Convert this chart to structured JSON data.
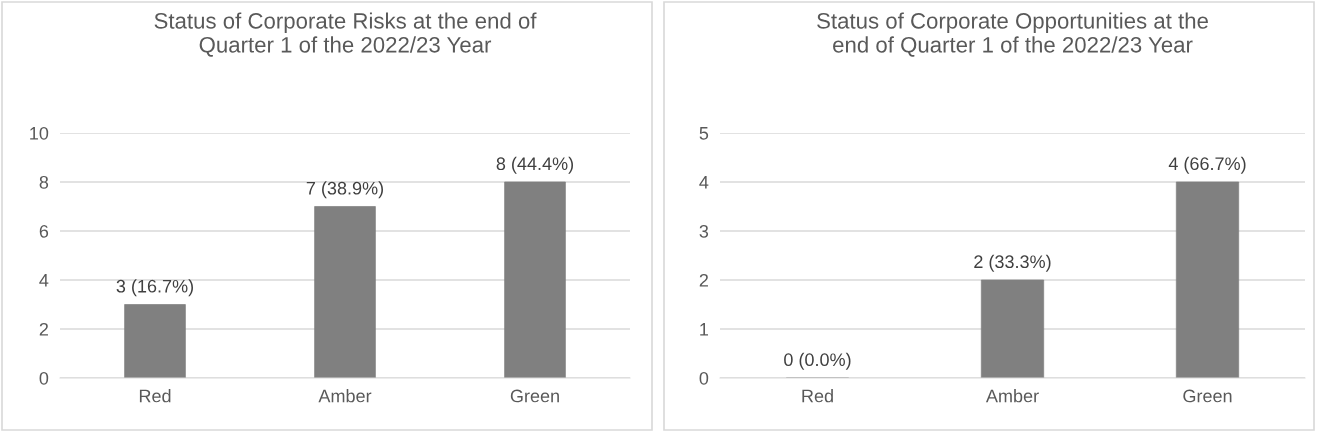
{
  "chart_data": [
    {
      "type": "bar",
      "title": "Status of Corporate Risks at the end of\nQuarter 1 of the 2022/23 Year",
      "categories": [
        "Red",
        "Amber",
        "Green"
      ],
      "values": [
        3,
        7,
        8
      ],
      "color": "#808080",
      "value_labels": [
        "3 (16.7%)",
        "7 (38.9%)",
        "8 (44.4%)"
      ],
      "ylim": [
        0,
        10
      ],
      "yticks": [
        0,
        2,
        4,
        6,
        8,
        10
      ],
      "grid": "y",
      "legend": false
    },
    {
      "type": "bar",
      "title": "Status of Corporate Opportunities at the\nend of Quarter 1 of the 2022/23 Year",
      "categories": [
        "Red",
        "Amber",
        "Green"
      ],
      "values": [
        0,
        2,
        4
      ],
      "color": "#808080",
      "value_labels": [
        "0 (0.0%)",
        "2 (33.3%)",
        "4 (66.7%)"
      ],
      "ylim": [
        0,
        5
      ],
      "yticks": [
        0,
        1,
        2,
        3,
        4,
        5
      ],
      "grid": "y",
      "legend": false
    }
  ]
}
